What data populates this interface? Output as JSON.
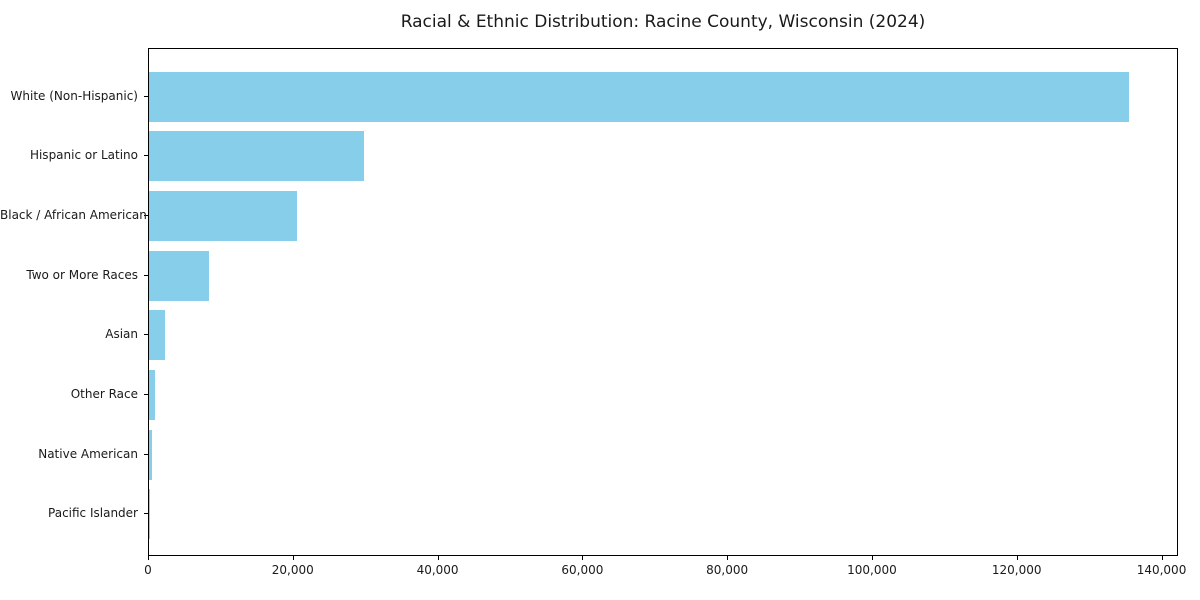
{
  "page": {
    "background_color": "#ffffff"
  },
  "chart_data": {
    "type": "bar",
    "orientation": "horizontal",
    "title": "Racial & Ethnic Distribution: Racine County, Wisconsin (2024)",
    "categories": [
      "White (Non-Hispanic)",
      "Hispanic or Latino",
      "Black / African American",
      "Two or More Races",
      "Asian",
      "Other Race",
      "Native American",
      "Pacific Islander"
    ],
    "values": [
      135400,
      29700,
      20400,
      8300,
      2250,
      800,
      350,
      100
    ],
    "xlabel": "",
    "ylabel": "",
    "xlim": [
      0,
      142000
    ],
    "x_ticks": [
      0,
      20000,
      40000,
      60000,
      80000,
      100000,
      120000,
      140000
    ],
    "x_tick_labels": [
      "0",
      "20,000",
      "40,000",
      "60,000",
      "80,000",
      "100,000",
      "120,000",
      "140,000"
    ],
    "bar_color": "#87CEEB",
    "spine_color": "#000000",
    "text_color": "#1a1a1a",
    "grid": false,
    "legend": null
  }
}
